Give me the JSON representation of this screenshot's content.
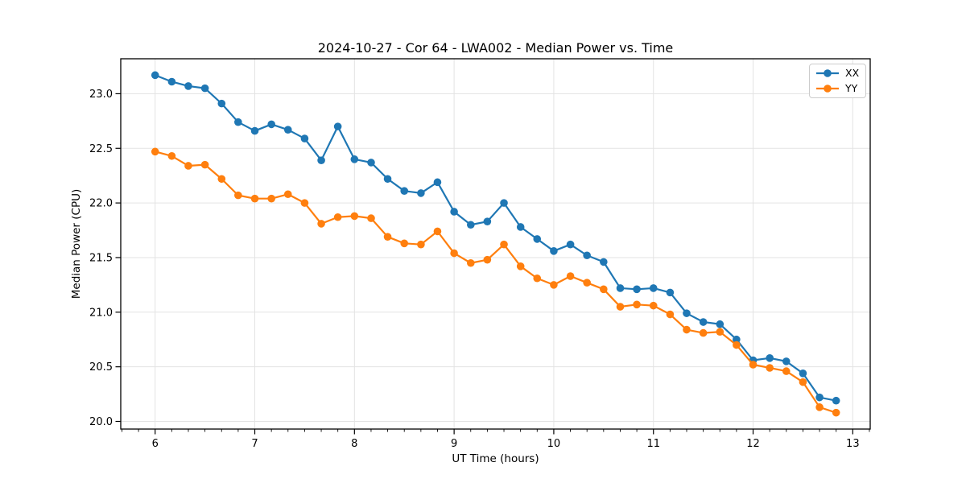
{
  "chart_data": {
    "type": "line",
    "title": "2024-10-27 - Cor 64 - LWA002 - Median Power vs. Time",
    "xlabel": "UT Time (hours)",
    "ylabel": "Median Power (CPU)",
    "xlim": [
      5.655,
      13.175
    ],
    "ylim": [
      19.93,
      23.32
    ],
    "xticks": [
      6,
      7,
      8,
      9,
      10,
      11,
      12,
      13
    ],
    "yticks": [
      20.0,
      20.5,
      21.0,
      21.5,
      22.0,
      22.5,
      23.0
    ],
    "minor_ticks_x_per_hour": 6,
    "grid": true,
    "grid_color": "#e3e3e3",
    "legend_position": "upper right",
    "x": [
      6.0,
      6.167,
      6.333,
      6.5,
      6.667,
      6.833,
      7.0,
      7.167,
      7.333,
      7.5,
      7.667,
      7.833,
      8.0,
      8.167,
      8.333,
      8.5,
      8.667,
      8.833,
      9.0,
      9.167,
      9.333,
      9.5,
      9.667,
      9.833,
      10.0,
      10.167,
      10.333,
      10.5,
      10.667,
      10.833,
      11.0,
      11.167,
      11.333,
      11.5,
      11.667,
      11.833,
      12.0,
      12.167,
      12.333,
      12.5,
      12.667,
      12.833
    ],
    "series": [
      {
        "name": "XX",
        "color": "#1f77b4",
        "values": [
          23.17,
          23.11,
          23.07,
          23.05,
          22.91,
          22.74,
          22.66,
          22.72,
          22.67,
          22.59,
          22.39,
          22.7,
          22.4,
          22.37,
          22.22,
          22.11,
          22.09,
          22.19,
          21.92,
          21.8,
          21.83,
          22.0,
          21.78,
          21.67,
          21.56,
          21.62,
          21.52,
          21.46,
          21.22,
          21.21,
          21.22,
          21.18,
          20.99,
          20.91,
          20.89,
          20.75,
          20.56,
          20.58,
          20.55,
          20.44,
          20.22,
          20.19
        ]
      },
      {
        "name": "YY",
        "color": "#ff7f0e",
        "values": [
          22.47,
          22.43,
          22.34,
          22.35,
          22.22,
          22.07,
          22.04,
          22.04,
          22.08,
          22.0,
          21.81,
          21.87,
          21.88,
          21.86,
          21.69,
          21.63,
          21.62,
          21.74,
          21.54,
          21.45,
          21.48,
          21.62,
          21.42,
          21.31,
          21.25,
          21.33,
          21.27,
          21.21,
          21.05,
          21.07,
          21.06,
          20.98,
          20.84,
          20.81,
          20.82,
          20.7,
          20.52,
          20.49,
          20.46,
          20.36,
          20.13,
          20.08
        ]
      }
    ]
  }
}
